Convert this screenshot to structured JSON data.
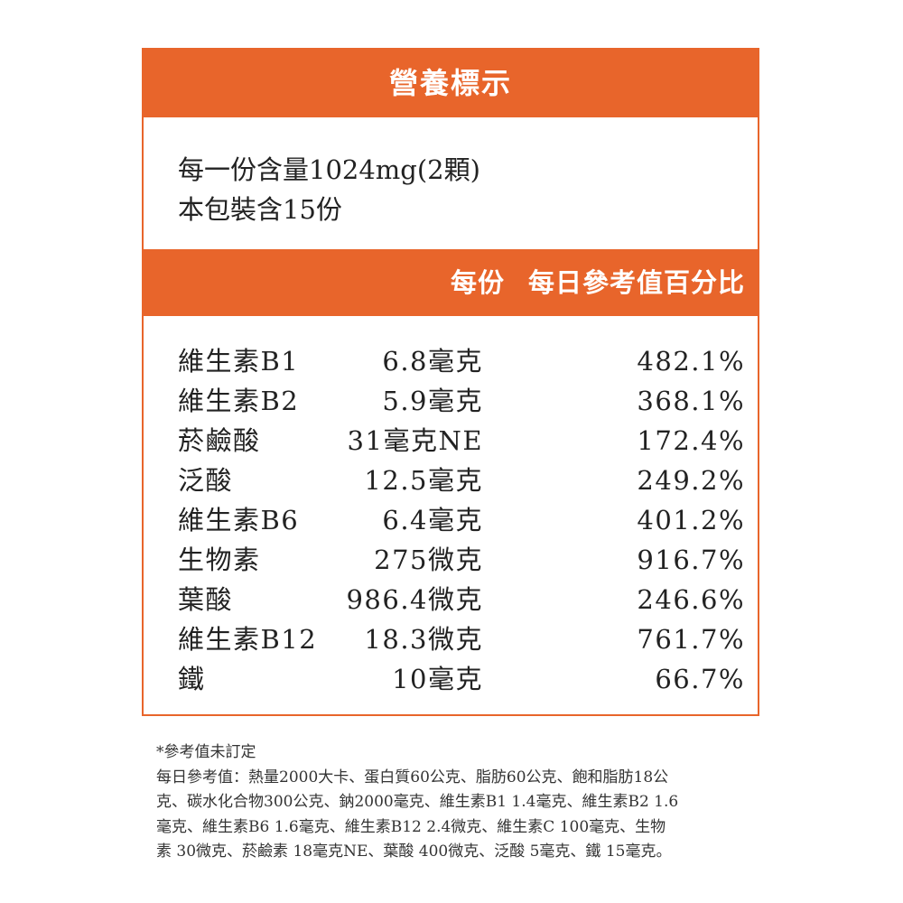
{
  "title": "營養標示",
  "serving": {
    "per_serving": "每一份含量1024mg(2顆)",
    "servings_per_package": "本包裝含15份"
  },
  "column_headers": {
    "per_serving": "每份",
    "daily_value": "每日參考值百分比"
  },
  "nutrients": [
    {
      "name": "維生素B1",
      "amount": "6.8毫克",
      "percent": "482.1%"
    },
    {
      "name": "維生素B2",
      "amount": "5.9毫克",
      "percent": "368.1%"
    },
    {
      "name": "菸鹼酸",
      "amount": "31毫克NE",
      "percent": "172.4%"
    },
    {
      "name": "泛酸",
      "amount": "12.5毫克",
      "percent": "249.2%"
    },
    {
      "name": "維生素B6",
      "amount": "6.4毫克",
      "percent": "401.2%"
    },
    {
      "name": "生物素",
      "amount": "275微克",
      "percent": "916.7%"
    },
    {
      "name": "葉酸",
      "amount": "986.4微克",
      "percent": "246.6%"
    },
    {
      "name": "維生素B12",
      "amount": "18.3微克",
      "percent": "761.7%"
    },
    {
      "name": "鐵",
      "amount": "10毫克",
      "percent": "66.7%"
    }
  ],
  "footnote": {
    "note": "*參考值未訂定",
    "lines": [
      "每日參考值：熱量2000大卡、蛋白質60公克、脂肪60公克、飽和脂肪18公",
      "克、碳水化合物300公克、鈉2000毫克、維生素B1 1.4毫克、維生素B2 1.6",
      "毫克、維生素B6 1.6毫克、維生素B12 2.4微克、維生素C 100毫克、生物",
      "素 30微克、菸鹼素 18毫克NE、葉酸 400微克、泛酸 5毫克、鐵 15毫克。"
    ]
  },
  "colors": {
    "accent": "#e8652b"
  }
}
